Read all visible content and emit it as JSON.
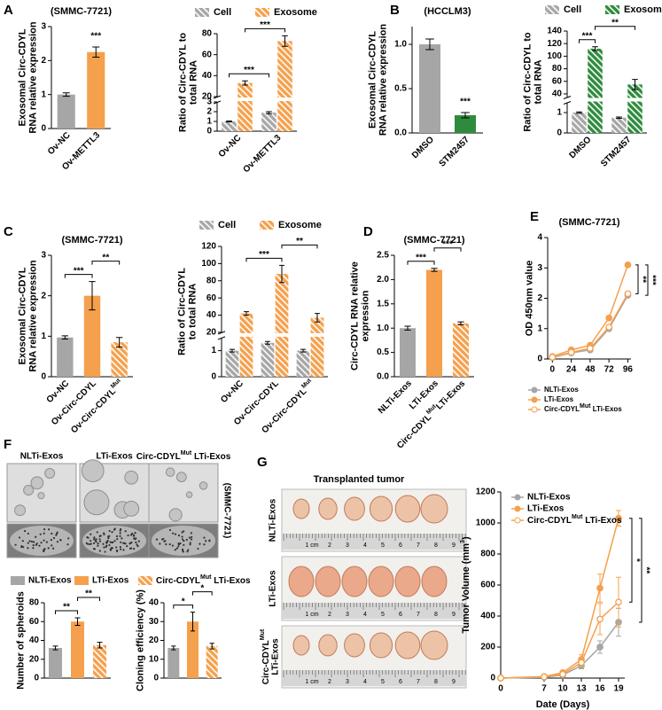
{
  "panels": [
    "A",
    "B",
    "C",
    "D",
    "E",
    "F",
    "G"
  ],
  "figure_f": {
    "columns": [
      "NLTi-Exos",
      "LTi-Exos",
      {
        "label": "Circ-CDYL",
        "sup": "Mut",
        "rest": " LTi-Exos"
      }
    ],
    "cell_line": "(SMMC-7721)"
  },
  "figure_g": {
    "title": "Transplanted tumor",
    "rows": [
      "NLTi-Exos",
      "LTi-Exos",
      {
        "label": "Circ-CDYL",
        "sup": "Mut",
        "rest": "LTi-Exos"
      }
    ],
    "ruler": [
      "1 cm",
      "2",
      "3",
      "4",
      "5",
      "6",
      "7",
      "8",
      "9"
    ]
  },
  "chart_data": [
    {
      "type": "bar",
      "title": "(SMMC-7721)",
      "ylabel": [
        "Exosomal Circ-CDYL",
        "RNA relative expression"
      ],
      "categories": [
        "Ov-NC",
        "Ov-METTL3"
      ],
      "values": [
        1.0,
        2.25
      ],
      "errors": [
        0.05,
        0.15
      ],
      "colors": [
        "#a6a6a6",
        "#f5a04c"
      ],
      "hatched": [
        false,
        false
      ],
      "ylim": [
        0,
        3
      ],
      "yticks": [
        0,
        1,
        2,
        3
      ],
      "annotations": [
        {
          "text": "***",
          "span": [
            1,
            1
          ]
        }
      ]
    },
    {
      "type": "bar",
      "ylabel": [
        "Ratio of Circ-CDYL to",
        "total RNA"
      ],
      "categories": [
        "Ov-NC",
        "Ov-METTL3"
      ],
      "series": [
        {
          "name": "Cell",
          "color": "#a6a6a6",
          "hatched": true,
          "values": [
            1.0,
            1.9
          ],
          "errors": [
            0.05,
            0.1
          ]
        },
        {
          "name": "Exosome",
          "color": "#f5a04c",
          "hatched": true,
          "values": [
            33,
            73
          ],
          "errors": [
            2,
            5
          ]
        }
      ],
      "ylim": [
        0,
        80
      ],
      "ybreak": [
        3,
        20
      ],
      "yticks": [
        0,
        1,
        2,
        3,
        20,
        40,
        60,
        80
      ],
      "legend": "top",
      "annotations": [
        {
          "text": "***",
          "span": [
            0,
            2
          ]
        },
        {
          "text": "***",
          "span": [
            1,
            3
          ]
        }
      ]
    },
    {
      "type": "bar",
      "title": "(HCCLM3)",
      "ylabel": [
        "Exosomal Circ-CDYL",
        "RNA relative expression"
      ],
      "categories": [
        "DMSO",
        "STM2457"
      ],
      "values": [
        1.0,
        0.2
      ],
      "errors": [
        0.06,
        0.03
      ],
      "colors": [
        "#a6a6a6",
        "#2e8b3d"
      ],
      "hatched": [
        false,
        false
      ],
      "ylim": [
        0,
        1.2
      ],
      "yticks": [
        {
          "value": 0,
          "label": "0.0"
        },
        0.5,
        {
          "value": 1,
          "label": "1.0"
        }
      ],
      "annotations": [
        {
          "text": "***",
          "span": [
            1,
            1
          ]
        }
      ]
    },
    {
      "type": "bar",
      "ylabel": [
        "Ratio of Circ-CDYL to",
        "total RNA"
      ],
      "categories": [
        "DMSO",
        "STM2457"
      ],
      "series": [
        {
          "name": "Cell",
          "color": "#a6a6a6",
          "hatched": true,
          "values": [
            1.0,
            0.75
          ],
          "errors": [
            0.03,
            0.03
          ]
        },
        {
          "name": "Exosome",
          "color": "#2e8b3d",
          "hatched": true,
          "values": [
            112,
            55
          ],
          "errors": [
            3,
            8
          ]
        }
      ],
      "ylim": [
        0,
        140
      ],
      "ybreak": [
        1.5,
        35
      ],
      "yticks": [
        0,
        1,
        40,
        60,
        80,
        100,
        120,
        140
      ],
      "legend": "top",
      "annotations": [
        {
          "text": "***",
          "span": [
            0,
            1
          ]
        },
        {
          "text": "**",
          "span": [
            1,
            3
          ]
        }
      ]
    },
    {
      "type": "bar",
      "title": "(SMMC-7721)",
      "ylabel": [
        "Exosomal Circ-CDYL",
        "RNA relative expression"
      ],
      "categories": [
        "Ov-NC",
        "Ov-Circ-CDYL",
        {
          "label": "Ov-Circ-CDYL",
          "sup": "Mut"
        }
      ],
      "values": [
        0.97,
        2.0,
        0.85
      ],
      "errors": [
        0.04,
        0.35,
        0.12
      ],
      "colors": [
        "#a6a6a6",
        "#f5a04c",
        "#f5a04c"
      ],
      "hatched": [
        false,
        false,
        true
      ],
      "ylim": [
        0,
        3
      ],
      "yticks": [
        0,
        1,
        2,
        3
      ],
      "annotations": [
        {
          "text": "***",
          "span": [
            0,
            1
          ]
        },
        {
          "text": "**",
          "span": [
            1,
            2
          ]
        }
      ]
    },
    {
      "type": "bar",
      "ylabel": [
        "Ratio of Circ-CDYL",
        "to total RNA"
      ],
      "categories": [
        "Ov-NC",
        "Ov-Circ-CDYL",
        {
          "label": "Ov-Circ-CDYL",
          "sup": "Mut"
        }
      ],
      "series": [
        {
          "name": "Cell",
          "color": "#a6a6a6",
          "hatched": true,
          "values": [
            1.0,
            1.3,
            1.0
          ],
          "errors": [
            0.05,
            0.05,
            0.05
          ]
        },
        {
          "name": "Exosome",
          "color": "#f5a04c",
          "hatched": true,
          "values": [
            42,
            88,
            37
          ],
          "errors": [
            2,
            10,
            5
          ]
        }
      ],
      "ylim": [
        0,
        120
      ],
      "ybreak": [
        1.5,
        20
      ],
      "yticks": [
        0,
        1,
        20,
        40,
        60,
        80,
        100,
        120
      ],
      "legend": "top",
      "annotations": [
        {
          "text": "***",
          "span": [
            1,
            3
          ]
        },
        {
          "text": "**",
          "span": [
            3,
            5
          ]
        }
      ]
    },
    {
      "type": "bar",
      "title": "(SMMC-7721)",
      "ylabel": [
        "Circ-CDYL RNA relative",
        "expression"
      ],
      "categories": [
        "NLTi-Exos",
        "LTi-Exos",
        {
          "label": "Circ-CDYL",
          "sup": "Mut",
          "rest": "LTi-Exos"
        }
      ],
      "values": [
        1.0,
        2.2,
        1.1
      ],
      "errors": [
        0.04,
        0.03,
        0.03
      ],
      "colors": [
        "#a6a6a6",
        "#f5a04c",
        "#f5a04c"
      ],
      "hatched": [
        false,
        false,
        true
      ],
      "ylim": [
        0,
        2.5
      ],
      "yticks": [
        {
          "value": 0,
          "label": "0.0"
        },
        0.5,
        {
          "value": 1,
          "label": "1.0"
        },
        1.5,
        {
          "value": 2,
          "label": "2.0"
        },
        2.5
      ],
      "annotations": [
        {
          "text": "***",
          "span": [
            0,
            1
          ]
        },
        {
          "text": "***",
          "span": [
            1,
            2
          ]
        }
      ]
    },
    {
      "type": "line",
      "title": "(SMMC-7721)",
      "ylabel": "OD 450nm value",
      "x": [
        0,
        24,
        48,
        72,
        96
      ],
      "xlim": [
        -6,
        100
      ],
      "xticks": [
        0,
        24,
        48,
        72,
        96
      ],
      "ylim": [
        0,
        4
      ],
      "yticks": [
        0,
        1,
        2,
        3,
        4
      ],
      "legend": "below",
      "series": [
        {
          "name": "NLTi-Exos",
          "color": "#a6a6a6",
          "marker": "filled",
          "values": [
            0.05,
            0.2,
            0.3,
            1.0,
            2.1
          ],
          "errors": [
            0.02,
            0.03,
            0.03,
            0.05,
            0.05
          ]
        },
        {
          "name": "LTi-Exos",
          "color": "#f5a04c",
          "marker": "filled",
          "values": [
            0.08,
            0.3,
            0.45,
            1.35,
            3.1
          ],
          "errors": [
            0.02,
            0.03,
            0.04,
            0.05,
            0.05
          ]
        },
        {
          "name": {
            "label": "Circ-CDYL",
            "sup": "Mut",
            "rest": " LTi-Exos"
          },
          "color": "#f5a04c",
          "marker": "open",
          "values": [
            0.06,
            0.22,
            0.35,
            1.05,
            2.15
          ],
          "errors": [
            0.02,
            0.03,
            0.03,
            0.05,
            0.05
          ]
        }
      ],
      "annotations": [
        {
          "text": "**",
          "span": [
            1,
            2
          ]
        },
        {
          "text": "***",
          "span": [
            1,
            0
          ]
        }
      ]
    },
    {
      "type": "bar",
      "ylabel": "Number of spheroids",
      "categories": [
        "NLTi-Exos",
        "LTi-Exos",
        {
          "label": "Circ-CDYL",
          "sup": "Mut",
          "rest": " LTi-Exos"
        }
      ],
      "values": [
        32,
        60,
        35
      ],
      "errors": [
        2,
        4,
        3
      ],
      "colors": [
        "#a6a6a6",
        "#f5a04c",
        "#f5a04c"
      ],
      "hatched": [
        false,
        false,
        true
      ],
      "legend": "top",
      "ylim": [
        0,
        80
      ],
      "yticks": [
        0,
        20,
        40,
        60,
        80
      ],
      "annotations": [
        {
          "text": "**",
          "span": [
            0,
            1
          ]
        },
        {
          "text": "**",
          "span": [
            1,
            2
          ]
        }
      ]
    },
    {
      "type": "bar",
      "ylabel": "Cloning efficiency (%)",
      "values": [
        16,
        30,
        17
      ],
      "errors": [
        1,
        5,
        1.5
      ],
      "colors": [
        "#a6a6a6",
        "#f5a04c",
        "#f5a04c"
      ],
      "hatched": [
        false,
        false,
        true
      ],
      "ylim": [
        0,
        40
      ],
      "yticks": [
        0,
        10,
        20,
        30,
        40
      ],
      "annotations": [
        {
          "text": "*",
          "span": [
            0,
            1
          ]
        },
        {
          "text": "*",
          "span": [
            1,
            2
          ]
        }
      ]
    },
    {
      "type": "line",
      "ylabel": {
        "label": "Tumor Volume (mm",
        "sup": "3",
        "rest": ")"
      },
      "xlabel": "Date (Days)",
      "x": [
        0,
        7,
        10,
        13,
        16,
        19
      ],
      "xlim": [
        0,
        20
      ],
      "xticks": [
        0,
        7,
        10,
        13,
        16,
        19
      ],
      "ylim": [
        0,
        1200
      ],
      "yticks": [
        0,
        200,
        400,
        600,
        800,
        1000,
        1200
      ],
      "legend": "upper left",
      "series": [
        {
          "name": "NLTi-Exos",
          "color": "#a6a6a6",
          "marker": "filled",
          "values": [
            0,
            5,
            20,
            80,
            200,
            360
          ],
          "errors": [
            0,
            3,
            8,
            20,
            40,
            90
          ]
        },
        {
          "name": "LTi-Exos",
          "color": "#f5a04c",
          "marker": "filled",
          "values": [
            0,
            10,
            35,
            120,
            580,
            1030
          ],
          "errors": [
            0,
            4,
            10,
            30,
            90,
            50
          ]
        },
        {
          "name": {
            "label": "Circ-CDYL",
            "sup": "Mut",
            "rest": " LTi-Exos"
          },
          "color": "#f5a04c",
          "marker": "open",
          "values": [
            0,
            8,
            25,
            100,
            380,
            490
          ],
          "errors": [
            0,
            3,
            8,
            25,
            100,
            160
          ]
        }
      ],
      "annotations": [
        {
          "text": "*",
          "span": [
            1,
            2
          ]
        },
        {
          "text": "**",
          "span": [
            1,
            0
          ]
        }
      ]
    }
  ]
}
